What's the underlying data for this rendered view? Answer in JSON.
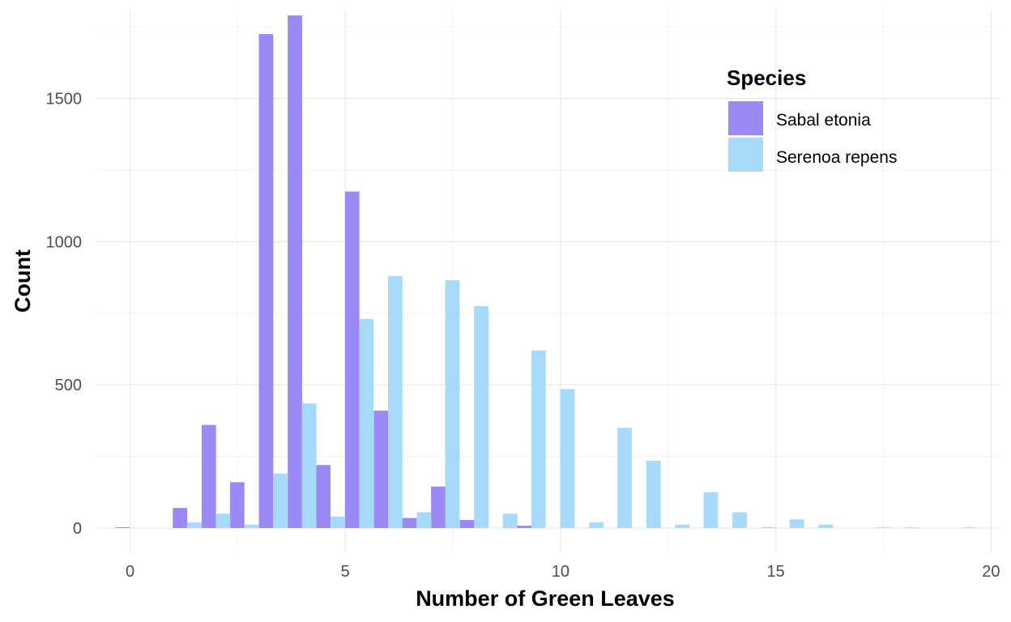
{
  "chart_data": {
    "type": "bar",
    "xlabel": "Number of Green Leaves",
    "ylabel": "Count",
    "xlim": [
      -0.8,
      20.2
    ],
    "ylim": [
      -85,
      1810
    ],
    "x_ticks": [
      "0",
      "5",
      "10",
      "15",
      "20"
    ],
    "y_ticks": [
      "0",
      "500",
      "1000",
      "1500"
    ],
    "grid": true,
    "legend": {
      "title": "Species",
      "placement": "top-right"
    },
    "series": [
      {
        "name": "Sabal etonia",
        "color": "#9b8af6",
        "points": [
          {
            "x": -0.17,
            "y": 3
          },
          {
            "x": 1.16,
            "y": 70
          },
          {
            "x": 1.83,
            "y": 360
          },
          {
            "x": 2.49,
            "y": 160
          },
          {
            "x": 3.16,
            "y": 1725
          },
          {
            "x": 3.83,
            "y": 1790
          },
          {
            "x": 4.49,
            "y": 220
          },
          {
            "x": 5.16,
            "y": 1175
          },
          {
            "x": 5.83,
            "y": 410
          },
          {
            "x": 6.49,
            "y": 35
          },
          {
            "x": 7.16,
            "y": 145
          },
          {
            "x": 7.83,
            "y": 28
          },
          {
            "x": 9.16,
            "y": 8
          }
        ]
      },
      {
        "name": "Serenoa repens",
        "color": "#a7d9fb",
        "points": [
          {
            "x": 1.49,
            "y": 20
          },
          {
            "x": 2.16,
            "y": 50
          },
          {
            "x": 2.83,
            "y": 12
          },
          {
            "x": 3.49,
            "y": 190
          },
          {
            "x": 4.16,
            "y": 435
          },
          {
            "x": 4.83,
            "y": 40
          },
          {
            "x": 5.49,
            "y": 730
          },
          {
            "x": 6.16,
            "y": 880
          },
          {
            "x": 6.83,
            "y": 55
          },
          {
            "x": 7.49,
            "y": 865
          },
          {
            "x": 8.16,
            "y": 775
          },
          {
            "x": 8.83,
            "y": 50
          },
          {
            "x": 9.49,
            "y": 620
          },
          {
            "x": 10.16,
            "y": 485
          },
          {
            "x": 10.83,
            "y": 20
          },
          {
            "x": 11.49,
            "y": 350
          },
          {
            "x": 12.16,
            "y": 235
          },
          {
            "x": 12.83,
            "y": 12
          },
          {
            "x": 13.49,
            "y": 125
          },
          {
            "x": 14.16,
            "y": 55
          },
          {
            "x": 14.83,
            "y": 3
          },
          {
            "x": 15.49,
            "y": 30
          },
          {
            "x": 16.16,
            "y": 12
          },
          {
            "x": 17.49,
            "y": 2
          },
          {
            "x": 18.16,
            "y": 2
          },
          {
            "x": 19.49,
            "y": 2
          }
        ]
      }
    ]
  }
}
